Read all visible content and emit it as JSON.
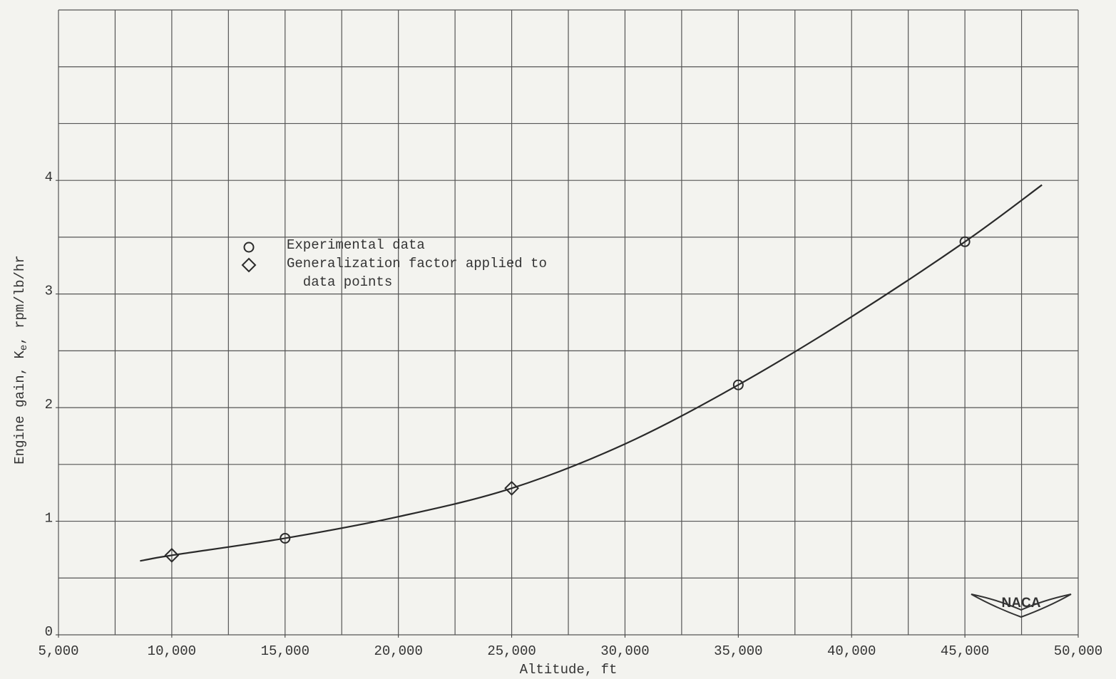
{
  "chart_data": {
    "type": "line",
    "x_label": "Altitude, ft",
    "y_label": [
      "Engine gain, K",
      "e",
      ", rpm/lb/hr"
    ],
    "logo": "NACA",
    "xlim": [
      5000,
      50000
    ],
    "ylim": [
      0,
      5.5
    ],
    "xticks": [
      {
        "value": 5000,
        "label": "5,000"
      },
      {
        "value": 10000,
        "label": "10,000"
      },
      {
        "value": 15000,
        "label": "15,000"
      },
      {
        "value": 20000,
        "label": "20,000"
      },
      {
        "value": 25000,
        "label": "25,000"
      },
      {
        "value": 30000,
        "label": "30,000"
      },
      {
        "value": 35000,
        "label": "35,000"
      },
      {
        "value": 40000,
        "label": "40,000"
      },
      {
        "value": 45000,
        "label": "45,000"
      },
      {
        "value": 50000,
        "label": "50,000"
      }
    ],
    "yticks": [
      0,
      1,
      2,
      3,
      4
    ],
    "grid": {
      "x": 2500,
      "y": 0.5
    },
    "series": [
      {
        "color": "#2a2a2a",
        "x": [
          8600,
          10000,
          15000,
          20000,
          25000,
          30000,
          35000,
          40000,
          45000,
          48400
        ],
        "values": [
          0.65,
          0.7,
          0.85,
          1.04,
          1.29,
          1.68,
          2.2,
          2.8,
          3.46,
          3.96
        ]
      },
      {
        "name": "Experimental data",
        "marker": "circle",
        "color": "#2a2a2a",
        "x": [
          15000,
          35000,
          45000
        ],
        "values": [
          0.85,
          2.2,
          3.46
        ]
      },
      {
        "name": "Generalization factor applied to data points",
        "marker": "diamond",
        "color": "#2a2a2a",
        "x": [
          10000,
          25000
        ],
        "values": [
          0.7,
          1.29
        ]
      }
    ]
  }
}
